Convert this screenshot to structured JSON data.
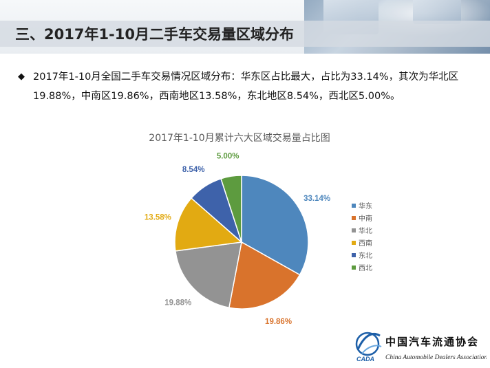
{
  "header": {
    "title": "三、2017年1-10月二手车交易量区域分布"
  },
  "summary": {
    "bullet_symbol": "◆",
    "text": "2017年1-10月全国二手车交易情况区域分布：华东区占比最大，占比为33.14%，其次为华北区19.88%，中南区19.86%，西南地区13.58%，东北地区8.54%，西北区5.00%。"
  },
  "chart_data": {
    "type": "pie",
    "title": "2017年1-10月累计六大区域交易量占比图",
    "legend_position": "right",
    "slices": [
      {
        "name": "华东",
        "value": 33.14,
        "label": "33.14%",
        "color": "#4e87bd"
      },
      {
        "name": "中南",
        "value": 19.86,
        "label": "19.86%",
        "color": "#d9732c"
      },
      {
        "name": "华北",
        "value": 19.88,
        "label": "19.88%",
        "color": "#939393"
      },
      {
        "name": "西南",
        "value": 13.58,
        "label": "13.58%",
        "color": "#e2aa12"
      },
      {
        "name": "东北",
        "value": 8.54,
        "label": "8.54%",
        "color": "#3e62aa"
      },
      {
        "name": "西北",
        "value": 5.0,
        "label": "5.00%",
        "color": "#5d9b3f"
      }
    ]
  },
  "footer": {
    "org_name_cn": "中国汽车流通协会",
    "org_name_en": "China Automobile Dealers Association",
    "logo_text": "CADA"
  }
}
